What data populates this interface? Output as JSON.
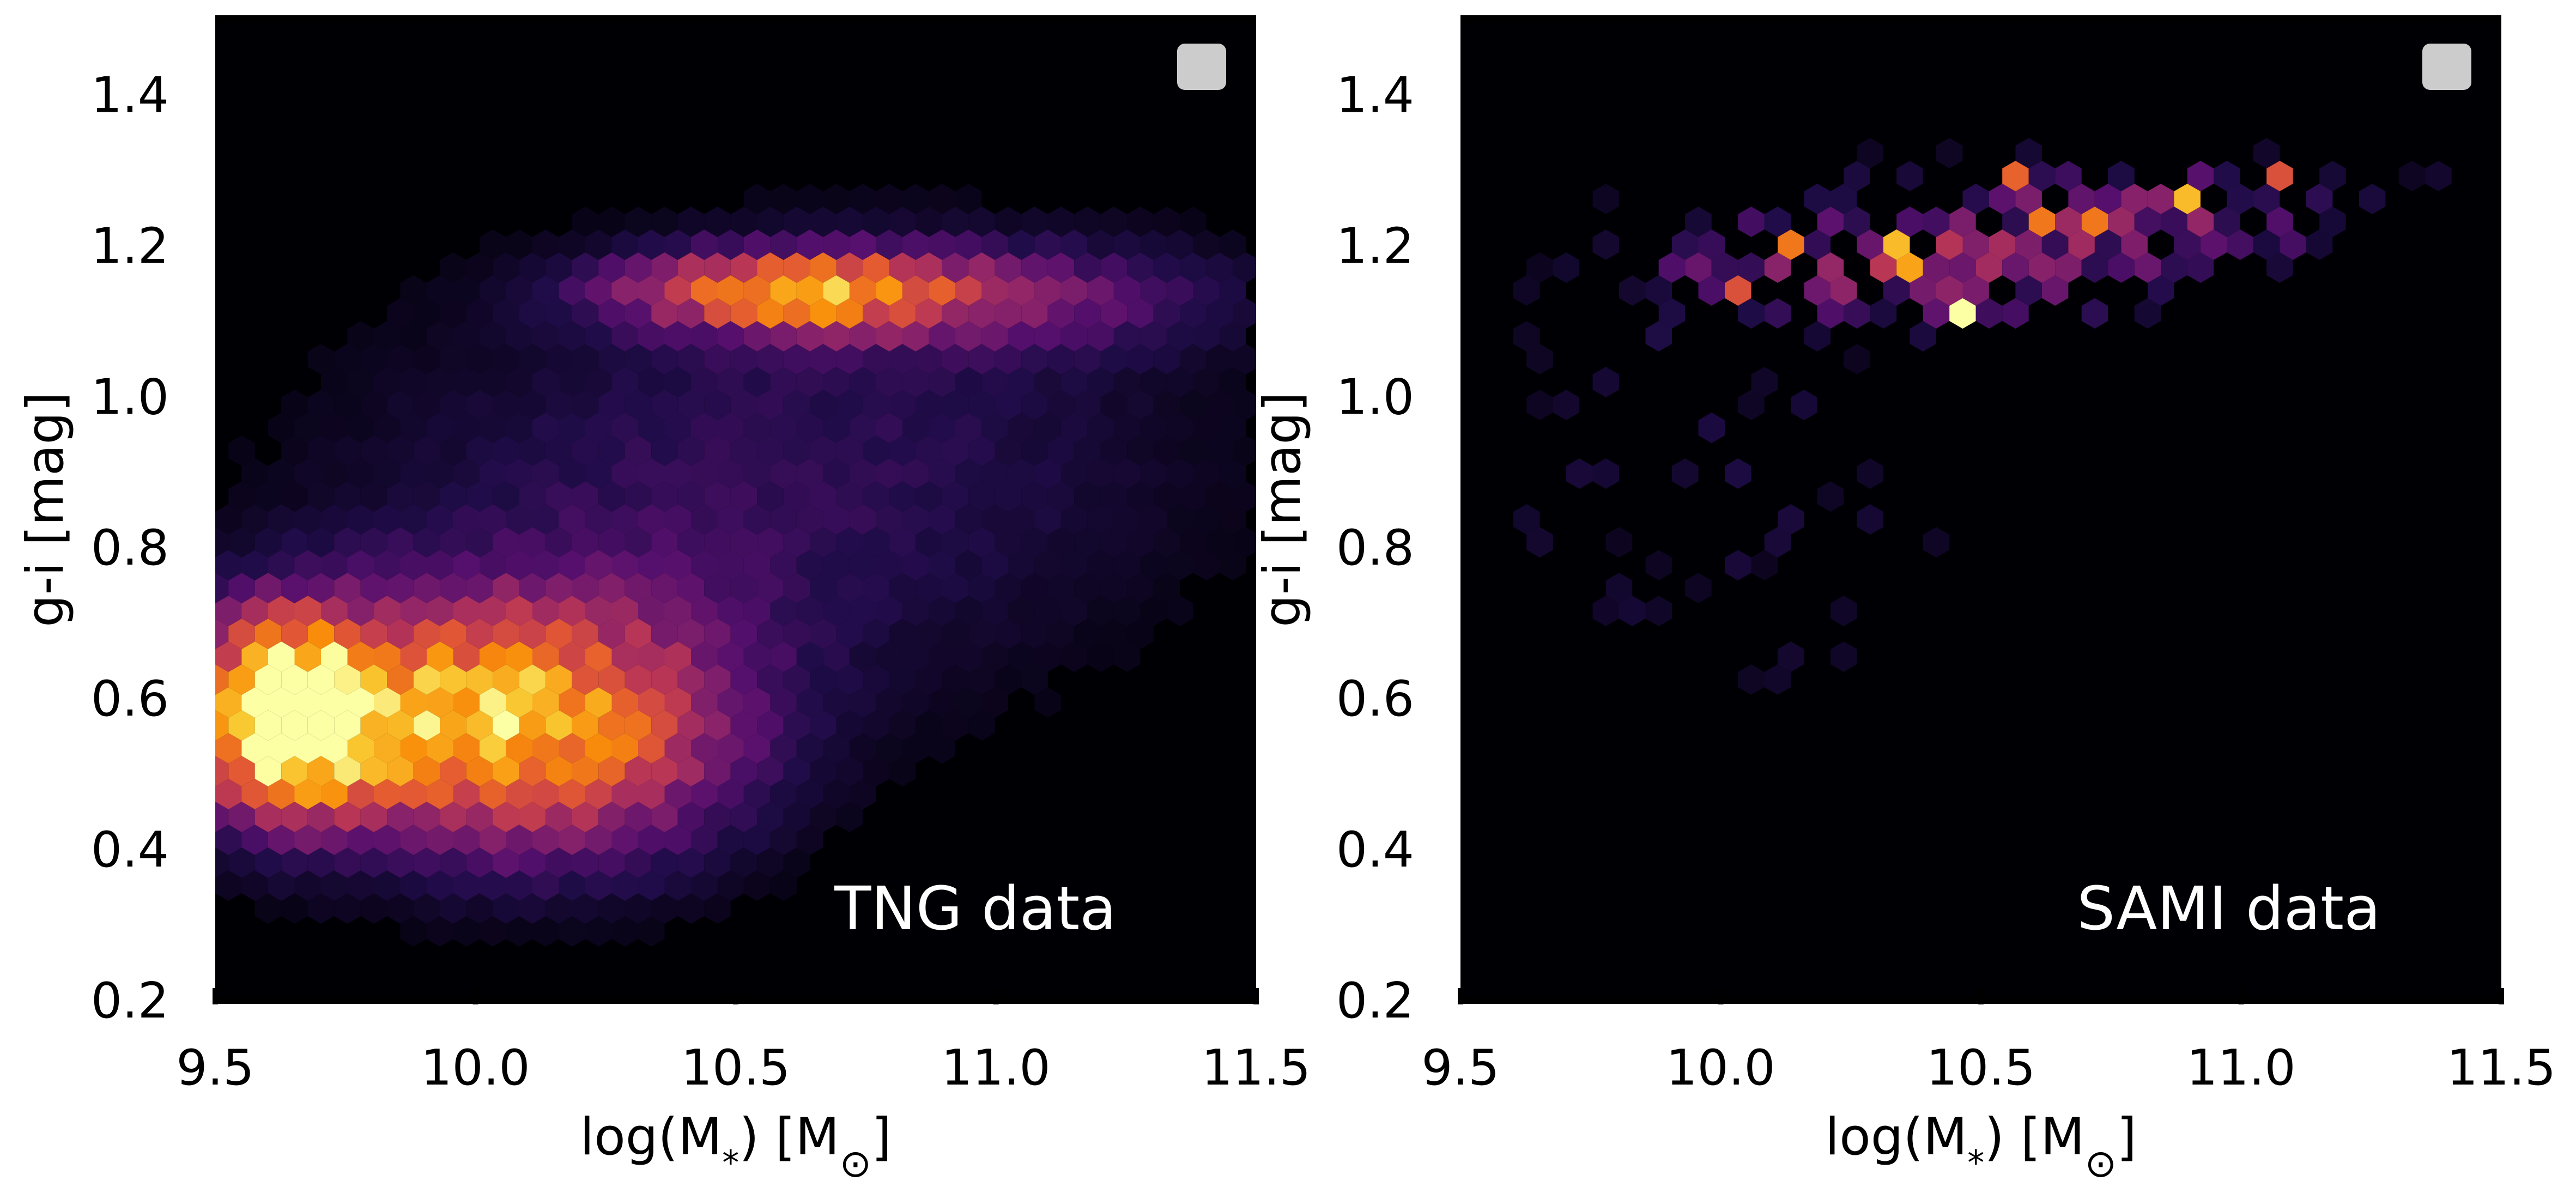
{
  "chart_data": [
    {
      "type": "heatmap",
      "subtype": "hexbin",
      "colormap": "inferno",
      "annotation": "TNG data",
      "xlabel": "log(M",
      "xlabel_sub": "*",
      "xlabel_unit": ") [M",
      "xlabel_sun": "⊙",
      "xlabel_end": "]",
      "ylabel": "g-i [mag]",
      "xlim": [
        9.5,
        11.5
      ],
      "ylim": [
        0.2,
        1.5
      ],
      "xticks": [
        "9.5",
        "10.0",
        "10.5",
        "11.0",
        "11.5"
      ],
      "yticks": [
        "0.2",
        "0.4",
        "0.6",
        "0.8",
        "1.0",
        "1.2",
        "1.4"
      ],
      "legend": "top-right (empty)",
      "density_components": [
        {
          "x": 9.62,
          "y": 0.58,
          "sx": 0.12,
          "sy": 0.09,
          "w": 1.0
        },
        {
          "x": 9.92,
          "y": 0.57,
          "sx": 0.22,
          "sy": 0.11,
          "w": 0.68
        },
        {
          "x": 10.25,
          "y": 0.56,
          "sx": 0.22,
          "sy": 0.12,
          "w": 0.45
        },
        {
          "x": 10.6,
          "y": 1.14,
          "sx": 0.22,
          "sy": 0.035,
          "w": 0.62
        },
        {
          "x": 10.95,
          "y": 1.13,
          "sx": 0.35,
          "sy": 0.05,
          "w": 0.28
        },
        {
          "x": 10.35,
          "y": 0.85,
          "sx": 0.5,
          "sy": 0.2,
          "w": 0.13
        },
        {
          "x": 10.9,
          "y": 0.95,
          "sx": 0.45,
          "sy": 0.2,
          "w": 0.08
        }
      ]
    },
    {
      "type": "heatmap",
      "subtype": "hexbin",
      "colormap": "inferno",
      "annotation": "SAMI data",
      "xlabel": "log(M",
      "xlabel_sub": "*",
      "xlabel_unit": ") [M",
      "xlabel_sun": "⊙",
      "xlabel_end": "]",
      "ylabel": "g-i [mag]",
      "xlim": [
        9.5,
        11.5
      ],
      "ylim": [
        0.2,
        1.5
      ],
      "xticks": [
        "9.5",
        "10.0",
        "10.5",
        "11.0",
        "11.5"
      ],
      "yticks": [
        "0.2",
        "0.4",
        "0.6",
        "0.8",
        "1.0",
        "1.2",
        "1.4"
      ],
      "legend": "top-right (empty)",
      "density_components": [
        {
          "x": 10.3,
          "y": 1.17,
          "sx": 0.35,
          "sy": 0.06,
          "w": 0.5
        },
        {
          "x": 10.85,
          "y": 1.24,
          "sx": 0.35,
          "sy": 0.06,
          "w": 0.45
        },
        {
          "x": 10.0,
          "y": 0.85,
          "sx": 0.35,
          "sy": 0.2,
          "w": 0.18
        }
      ],
      "highlights": [
        {
          "x": 10.45,
          "y": 1.12,
          "v": 1.0
        },
        {
          "x": 10.36,
          "y": 1.19,
          "v": 0.85
        },
        {
          "x": 10.35,
          "y": 1.17,
          "v": 0.8
        },
        {
          "x": 10.92,
          "y": 1.26,
          "v": 0.85
        },
        {
          "x": 10.12,
          "y": 1.2,
          "v": 0.7
        },
        {
          "x": 10.57,
          "y": 1.28,
          "v": 0.65
        },
        {
          "x": 10.63,
          "y": 1.24,
          "v": 0.7
        },
        {
          "x": 10.74,
          "y": 1.24,
          "v": 0.7
        },
        {
          "x": 11.3,
          "y": 1.23,
          "v": 0.68
        },
        {
          "x": 9.85,
          "y": 1.05,
          "v": 0.65
        },
        {
          "x": 10.43,
          "y": 0.91,
          "v": 0.7
        },
        {
          "x": 10.2,
          "y": 0.97,
          "v": 0.65
        },
        {
          "x": 10.02,
          "y": 0.84,
          "v": 0.65
        },
        {
          "x": 10.33,
          "y": 0.86,
          "v": 0.65
        },
        {
          "x": 10.45,
          "y": 1.03,
          "v": 0.6
        },
        {
          "x": 11.05,
          "y": 1.29,
          "v": 0.6
        },
        {
          "x": 10.05,
          "y": 1.15,
          "v": 0.6
        }
      ]
    }
  ]
}
